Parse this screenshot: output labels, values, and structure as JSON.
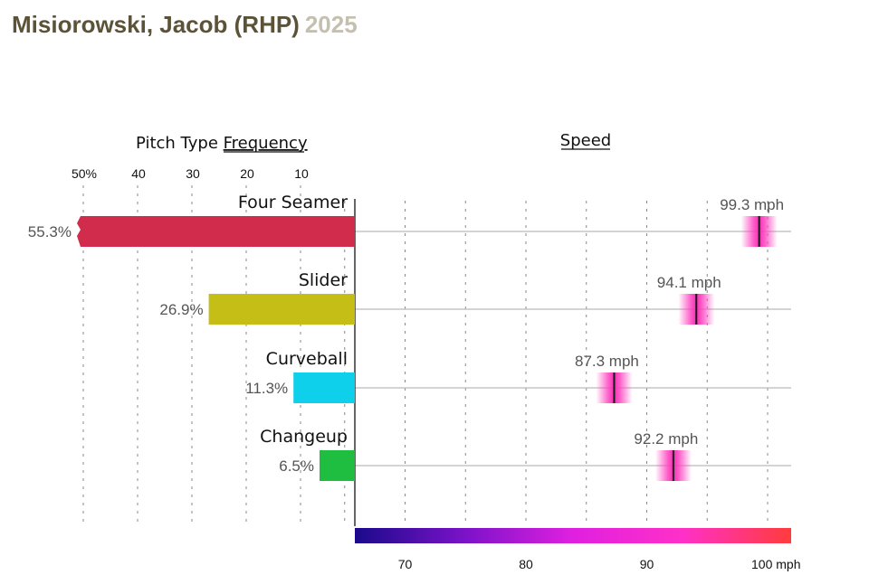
{
  "header": {
    "player": "Misiorowski, Jacob (RHP)",
    "season": "2025"
  },
  "chart_data": {
    "type": "bar",
    "frequency_panel": {
      "title_prefix": "Pitch Type ",
      "title_underlined": "Frequency",
      "ticks": [
        {
          "value": 50,
          "label": "50%"
        },
        {
          "value": 40,
          "label": "40"
        },
        {
          "value": 30,
          "label": "30"
        },
        {
          "value": 20,
          "label": "20"
        },
        {
          "value": 10,
          "label": "10"
        }
      ],
      "xlim": [
        0,
        50
      ]
    },
    "speed_panel": {
      "title": "Speed",
      "ticks": [
        {
          "value": 70,
          "label": "70"
        },
        {
          "value": 80,
          "label": "80"
        },
        {
          "value": 90,
          "label": "90"
        },
        {
          "value": 100,
          "label": "100 mph"
        }
      ],
      "gridlines": [
        65,
        70,
        75,
        80,
        85,
        90,
        95,
        100
      ],
      "xlim": [
        65,
        102
      ],
      "colorscale": [
        "#1a0a8a",
        "#7a12c8",
        "#e020e0",
        "#ff30c8",
        "#ff3c3c"
      ]
    },
    "categories": [
      "Four Seamer",
      "Slider",
      "Curveball",
      "Changeup"
    ],
    "frequency": [
      {
        "value": 55.3,
        "label": "55.3%",
        "color": "#d22c4c"
      },
      {
        "value": 26.9,
        "label": "26.9%",
        "color": "#c4be16"
      },
      {
        "value": 11.3,
        "label": "11.3%",
        "color": "#0ed0ea"
      },
      {
        "value": 6.5,
        "label": "6.5%",
        "color": "#1fbe40"
      }
    ],
    "speed": [
      {
        "value": 99.3,
        "label": "99.3 mph"
      },
      {
        "value": 94.1,
        "label": "94.1 mph"
      },
      {
        "value": 87.3,
        "label": "87.3 mph"
      },
      {
        "value": 92.2,
        "label": "92.2 mph"
      }
    ]
  }
}
